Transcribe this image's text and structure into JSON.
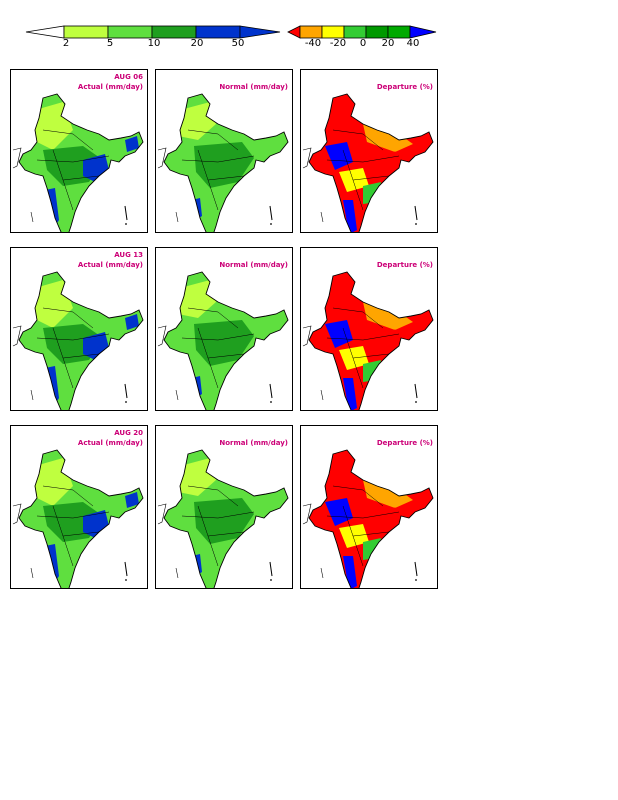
{
  "colorbars": {
    "actual": {
      "labels": [
        "2",
        "5",
        "10",
        "20",
        "50"
      ],
      "colors": [
        "#ffffff",
        "#bfff3f",
        "#5fdf3f",
        "#1f9f1f",
        "#0033cc"
      ]
    },
    "departure": {
      "labels": [
        "-40",
        "-20",
        "0",
        "20",
        "40"
      ],
      "colors": [
        "#ff0000",
        "#ffa500",
        "#ffff00",
        "#33cc33",
        "#009900",
        "#0000ff"
      ]
    }
  },
  "rows": [
    {
      "date": "AUG 06",
      "actual_title": "Actual (mm/day)",
      "normal_title": "Normal (mm/day)",
      "departure_title": "Departure (%)"
    },
    {
      "date": "AUG 13",
      "actual_title": "Actual (mm/day)",
      "normal_title": "Normal (mm/day)",
      "departure_title": "Departure (%)"
    },
    {
      "date": "AUG 20",
      "actual_title": "Actual (mm/day)",
      "normal_title": "Normal (mm/day)",
      "departure_title": "Departure (%)"
    }
  ],
  "map_colors": {
    "actual_base": "#5fdf3f",
    "actual_light": "#bfff3f",
    "actual_dark": "#1f9f1f",
    "actual_heavy": "#0033cc",
    "departure_deficit": "#ff0000",
    "departure_moderate": "#ffa500",
    "departure_near": "#ffff00",
    "departure_excess": "#33cc33",
    "departure_large_excess": "#0000ff"
  }
}
